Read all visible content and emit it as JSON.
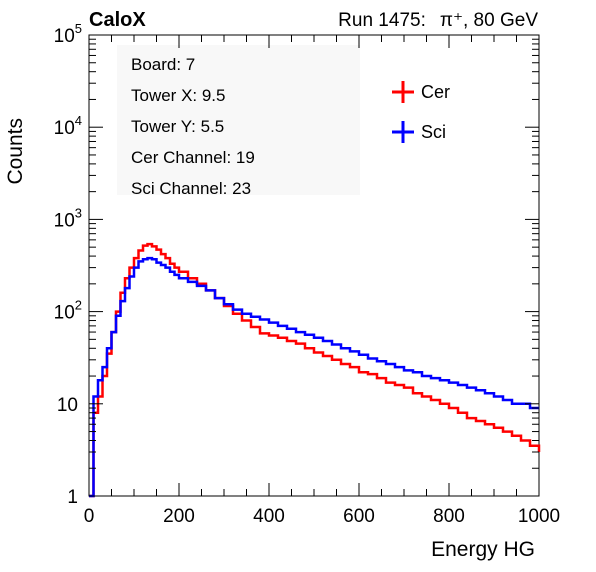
{
  "header": {
    "left_title": "CaloX",
    "run_label": "Run 1475:",
    "particle": "π⁺",
    "energy": ", 80 GeV"
  },
  "info_box": [
    "Board: 7",
    "Tower X: 9.5",
    "Tower Y: 5.5",
    "Cer Channel: 19",
    "Sci Channel: 23"
  ],
  "colors": {
    "cer": "#ff0000",
    "sci": "#0000ff"
  },
  "chart_data": {
    "type": "line",
    "xlabel": "Energy HG",
    "ylabel": "Counts",
    "xlim": [
      0,
      1000
    ],
    "ylim": [
      1,
      100000
    ],
    "yscale": "log",
    "xticks": [
      "0",
      "200",
      "400",
      "600",
      "800",
      "1000"
    ],
    "yticks": [
      {
        "base": "1",
        "exp": ""
      },
      {
        "base": "10",
        "exp": ""
      },
      {
        "base": "10",
        "exp": "2"
      },
      {
        "base": "10",
        "exp": "3"
      },
      {
        "base": "10",
        "exp": "4"
      },
      {
        "base": "10",
        "exp": "5"
      }
    ],
    "legend": "top-right",
    "grid": false,
    "series": [
      {
        "name": "Cer",
        "color": "#ff0000",
        "x": [
          0,
          10,
          20,
          30,
          40,
          50,
          60,
          70,
          80,
          90,
          100,
          110,
          120,
          130,
          140,
          150,
          160,
          170,
          180,
          190,
          200,
          220,
          240,
          260,
          280,
          300,
          320,
          340,
          360,
          380,
          400,
          420,
          440,
          460,
          480,
          500,
          520,
          540,
          560,
          580,
          600,
          620,
          640,
          660,
          680,
          700,
          720,
          740,
          760,
          780,
          800,
          820,
          840,
          860,
          880,
          900,
          920,
          940,
          960,
          980,
          1000
        ],
        "y": [
          1,
          8,
          12,
          20,
          35,
          60,
          100,
          160,
          230,
          300,
          380,
          460,
          520,
          540,
          510,
          470,
          420,
          380,
          330,
          300,
          270,
          230,
          200,
          170,
          140,
          115,
          95,
          80,
          68,
          58,
          55,
          52,
          48,
          45,
          40,
          36,
          33,
          30,
          27,
          25,
          22,
          21,
          19,
          17,
          16,
          15,
          13,
          12,
          11,
          10,
          9,
          8,
          7,
          6.5,
          6,
          5.5,
          5,
          4.5,
          4,
          3.5,
          3
        ]
      },
      {
        "name": "Sci",
        "color": "#0000ff",
        "x": [
          0,
          10,
          20,
          30,
          40,
          50,
          60,
          70,
          80,
          90,
          100,
          110,
          120,
          130,
          140,
          150,
          160,
          170,
          180,
          190,
          200,
          220,
          240,
          260,
          280,
          300,
          320,
          340,
          360,
          380,
          400,
          420,
          440,
          460,
          480,
          500,
          520,
          540,
          560,
          580,
          600,
          620,
          640,
          660,
          680,
          700,
          720,
          740,
          760,
          780,
          800,
          820,
          840,
          860,
          880,
          900,
          920,
          940,
          960,
          980,
          1000
        ],
        "y": [
          1,
          12,
          18,
          25,
          40,
          60,
          90,
          130,
          180,
          240,
          300,
          350,
          370,
          380,
          370,
          340,
          320,
          300,
          270,
          250,
          230,
          210,
          190,
          170,
          140,
          120,
          105,
          95,
          88,
          82,
          76,
          70,
          65,
          60,
          56,
          52,
          48,
          44,
          40,
          37,
          34,
          31,
          29,
          27,
          25,
          23,
          22,
          20,
          19,
          18,
          17,
          16,
          15,
          14,
          13,
          12,
          11,
          10,
          10,
          9,
          9
        ]
      }
    ]
  }
}
